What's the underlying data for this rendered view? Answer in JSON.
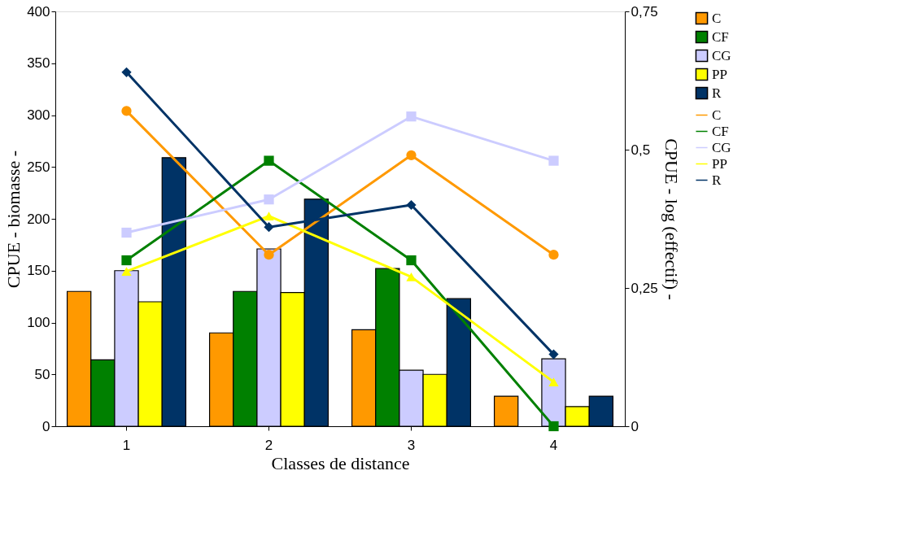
{
  "chart_data": {
    "type": "bar",
    "xlabel": "Classes de distance",
    "ylabel": "CPUE - biomasse -",
    "y2label": "CPUE - log (effectif) -",
    "categories": [
      "1",
      "2",
      "3",
      "4"
    ],
    "ylim": [
      0,
      400
    ],
    "yticks": [
      0,
      50,
      100,
      150,
      200,
      250,
      300,
      350,
      400
    ],
    "y2lim": [
      0,
      0.75
    ],
    "y2ticks": [
      0,
      {
        "value": 0.25,
        "label": "0,25"
      },
      {
        "value": 0.5,
        "label": "0,5"
      },
      {
        "value": 0.75,
        "label": "0,75"
      }
    ],
    "grid": false,
    "legend": "top right",
    "series": [
      {
        "name": "C",
        "color": "#ff9900",
        "values": [
          130,
          90,
          93,
          29
        ]
      },
      {
        "name": "CF",
        "color": "#008000",
        "values": [
          64,
          130,
          152,
          null
        ]
      },
      {
        "name": "CG",
        "color": "#ccccff",
        "values": [
          150,
          171,
          54,
          65
        ]
      },
      {
        "name": "PP",
        "color": "#ffff00",
        "values": [
          120,
          129,
          50,
          19
        ]
      },
      {
        "name": "R",
        "color": "#003366",
        "values": [
          259,
          219,
          123,
          29
        ]
      },
      {
        "name": "C",
        "type": "line",
        "axis": "y2",
        "marker": "circle",
        "color": "#ff9900",
        "values": [
          0.57,
          0.31,
          0.49,
          0.31
        ]
      },
      {
        "name": "CF",
        "type": "line",
        "axis": "y2",
        "marker": "square",
        "color": "#008000",
        "values": [
          0.3,
          0.48,
          0.3,
          0
        ]
      },
      {
        "name": "CG",
        "type": "line",
        "axis": "y2",
        "marker": "square",
        "color": "#ccccff",
        "values": [
          0.35,
          0.41,
          0.56,
          0.48
        ]
      },
      {
        "name": "PP",
        "type": "line",
        "axis": "y2",
        "marker": "triangle",
        "color": "#ffff00",
        "values": [
          0.28,
          0.38,
          0.27,
          0.08
        ]
      },
      {
        "name": "R",
        "type": "line",
        "axis": "y2",
        "marker": "diamond",
        "color": "#003366",
        "values": [
          0.64,
          0.36,
          0.4,
          0.13
        ]
      }
    ]
  }
}
